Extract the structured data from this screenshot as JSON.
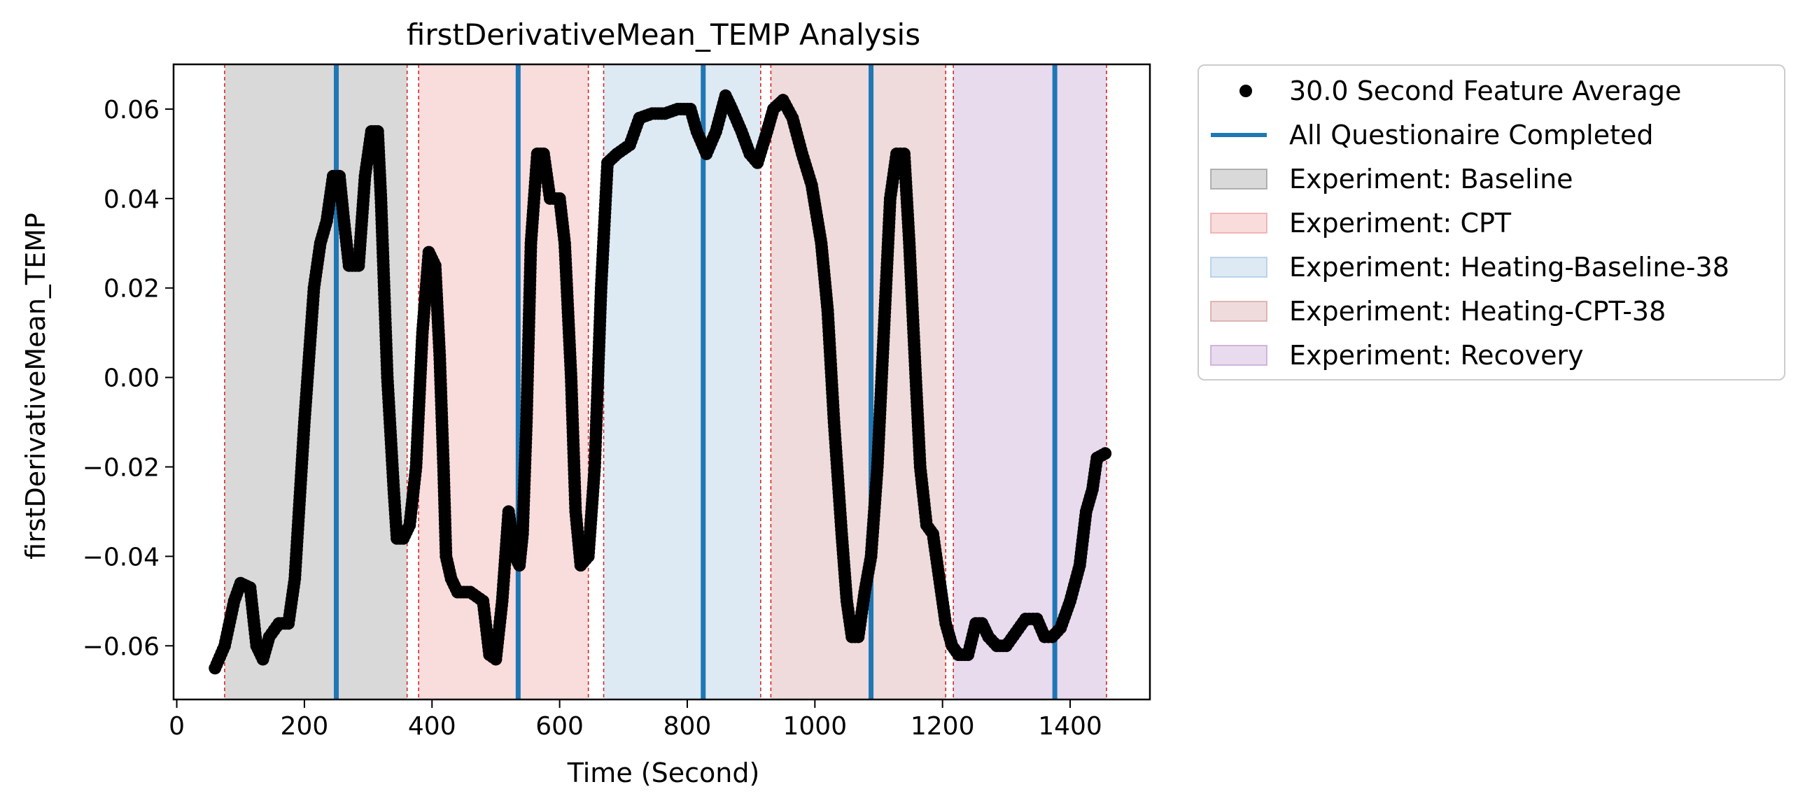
{
  "chart_data": {
    "type": "scatter",
    "title": "firstDerivativeMean_TEMP Analysis",
    "xlabel": "Time (Second)",
    "ylabel": "firstDerivativeMean_TEMP",
    "xlim": [
      -5,
      1525
    ],
    "ylim": [
      -0.072,
      0.07
    ],
    "xticks": [
      0,
      200,
      400,
      600,
      800,
      1000,
      1200,
      1400
    ],
    "xtick_labels": [
      "0",
      "200",
      "400",
      "600",
      "800",
      "1000",
      "1200",
      "1400"
    ],
    "yticks": [
      -0.06,
      -0.04,
      -0.02,
      0.0,
      0.02,
      0.04,
      0.06
    ],
    "ytick_labels": [
      "−0.06",
      "−0.04",
      "−0.02",
      "0.00",
      "0.02",
      "0.04",
      "0.06"
    ],
    "grid": false,
    "legend_position": "outside-upper-right",
    "series": [
      {
        "name": "30.0 Second Feature Average",
        "kind": "points",
        "color": "#000000",
        "points": [
          [
            60,
            -0.065
          ],
          [
            75,
            -0.06
          ],
          [
            90,
            -0.05
          ],
          [
            100,
            -0.046
          ],
          [
            115,
            -0.047
          ],
          [
            125,
            -0.06
          ],
          [
            135,
            -0.063
          ],
          [
            145,
            -0.058
          ],
          [
            160,
            -0.055
          ],
          [
            175,
            -0.055
          ],
          [
            185,
            -0.045
          ],
          [
            200,
            -0.01
          ],
          [
            215,
            0.02
          ],
          [
            225,
            0.03
          ],
          [
            235,
            0.035
          ],
          [
            245,
            0.045
          ],
          [
            255,
            0.045
          ],
          [
            262,
            0.035
          ],
          [
            270,
            0.025
          ],
          [
            285,
            0.025
          ],
          [
            295,
            0.045
          ],
          [
            305,
            0.055
          ],
          [
            315,
            0.055
          ],
          [
            320,
            0.04
          ],
          [
            330,
            0.0
          ],
          [
            340,
            -0.025
          ],
          [
            345,
            -0.036
          ],
          [
            355,
            -0.036
          ],
          [
            365,
            -0.033
          ],
          [
            375,
            -0.02
          ],
          [
            385,
            0.01
          ],
          [
            395,
            0.028
          ],
          [
            405,
            0.025
          ],
          [
            412,
            0.005
          ],
          [
            418,
            -0.02
          ],
          [
            422,
            -0.04
          ],
          [
            430,
            -0.045
          ],
          [
            440,
            -0.048
          ],
          [
            460,
            -0.048
          ],
          [
            480,
            -0.05
          ],
          [
            490,
            -0.062
          ],
          [
            500,
            -0.063
          ],
          [
            510,
            -0.05
          ],
          [
            520,
            -0.03
          ],
          [
            530,
            -0.04
          ],
          [
            537,
            -0.042
          ],
          [
            542,
            -0.035
          ],
          [
            548,
            -0.01
          ],
          [
            555,
            0.03
          ],
          [
            565,
            0.05
          ],
          [
            575,
            0.05
          ],
          [
            585,
            0.04
          ],
          [
            600,
            0.04
          ],
          [
            608,
            0.03
          ],
          [
            618,
            0.0
          ],
          [
            625,
            -0.03
          ],
          [
            633,
            -0.042
          ],
          [
            645,
            -0.04
          ],
          [
            655,
            -0.02
          ],
          [
            665,
            0.02
          ],
          [
            675,
            0.048
          ],
          [
            690,
            0.05
          ],
          [
            710,
            0.052
          ],
          [
            725,
            0.058
          ],
          [
            745,
            0.059
          ],
          [
            765,
            0.059
          ],
          [
            785,
            0.06
          ],
          [
            805,
            0.06
          ],
          [
            815,
            0.055
          ],
          [
            830,
            0.05
          ],
          [
            845,
            0.055
          ],
          [
            860,
            0.063
          ],
          [
            870,
            0.06
          ],
          [
            885,
            0.055
          ],
          [
            898,
            0.05
          ],
          [
            910,
            0.048
          ],
          [
            925,
            0.055
          ],
          [
            935,
            0.06
          ],
          [
            950,
            0.062
          ],
          [
            965,
            0.058
          ],
          [
            980,
            0.05
          ],
          [
            995,
            0.043
          ],
          [
            1010,
            0.03
          ],
          [
            1020,
            0.015
          ],
          [
            1030,
            -0.01
          ],
          [
            1042,
            -0.035
          ],
          [
            1050,
            -0.05
          ],
          [
            1058,
            -0.058
          ],
          [
            1068,
            -0.058
          ],
          [
            1078,
            -0.048
          ],
          [
            1088,
            -0.04
          ],
          [
            1098,
            -0.02
          ],
          [
            1108,
            0.01
          ],
          [
            1118,
            0.04
          ],
          [
            1128,
            0.05
          ],
          [
            1140,
            0.05
          ],
          [
            1148,
            0.03
          ],
          [
            1158,
            0.0
          ],
          [
            1165,
            -0.02
          ],
          [
            1175,
            -0.033
          ],
          [
            1185,
            -0.035
          ],
          [
            1195,
            -0.045
          ],
          [
            1205,
            -0.055
          ],
          [
            1215,
            -0.06
          ],
          [
            1225,
            -0.062
          ],
          [
            1240,
            -0.062
          ],
          [
            1252,
            -0.055
          ],
          [
            1262,
            -0.055
          ],
          [
            1272,
            -0.058
          ],
          [
            1285,
            -0.06
          ],
          [
            1300,
            -0.06
          ],
          [
            1315,
            -0.057
          ],
          [
            1330,
            -0.054
          ],
          [
            1348,
            -0.054
          ],
          [
            1360,
            -0.058
          ],
          [
            1372,
            -0.058
          ],
          [
            1385,
            -0.056
          ],
          [
            1400,
            -0.05
          ],
          [
            1415,
            -0.042
          ],
          [
            1425,
            -0.03
          ],
          [
            1435,
            -0.025
          ],
          [
            1442,
            -0.018
          ],
          [
            1455,
            -0.017
          ]
        ]
      }
    ],
    "questionnaire_lines": {
      "name": "All Questionaire Completed",
      "color": "#1f77b4",
      "x": [
        250,
        535,
        825,
        1088,
        1376
      ]
    },
    "phases": [
      {
        "name": "Experiment: Baseline",
        "x0": 75,
        "x1": 361,
        "color": "#808080"
      },
      {
        "name": "Experiment: CPT",
        "x0": 379,
        "x1": 645,
        "color": "#ea8a8a"
      },
      {
        "name": "Experiment: Heating-Baseline-38",
        "x0": 669,
        "x1": 915,
        "color": "#90b8dc"
      },
      {
        "name": "Experiment: Heating-CPT-38",
        "x0": 931,
        "x1": 1205,
        "color": "#c98888"
      },
      {
        "name": "Experiment: Recovery",
        "x0": 1217,
        "x1": 1457,
        "color": "#b687c6"
      }
    ],
    "phase_boundary_color": "#d62728",
    "legend": [
      {
        "label": "30.0 Second Feature Average",
        "kind": "marker",
        "color": "#000000"
      },
      {
        "label": "All Questionaire Completed",
        "kind": "line",
        "color": "#1f77b4"
      },
      {
        "label": "Experiment: Baseline",
        "kind": "patch",
        "color": "#808080"
      },
      {
        "label": "Experiment: CPT",
        "kind": "patch",
        "color": "#ea8a8a"
      },
      {
        "label": "Experiment: Heating-Baseline-38",
        "kind": "patch",
        "color": "#90b8dc"
      },
      {
        "label": "Experiment: Heating-CPT-38",
        "kind": "patch",
        "color": "#c98888"
      },
      {
        "label": "Experiment: Recovery",
        "kind": "patch",
        "color": "#b687c6"
      }
    ]
  }
}
